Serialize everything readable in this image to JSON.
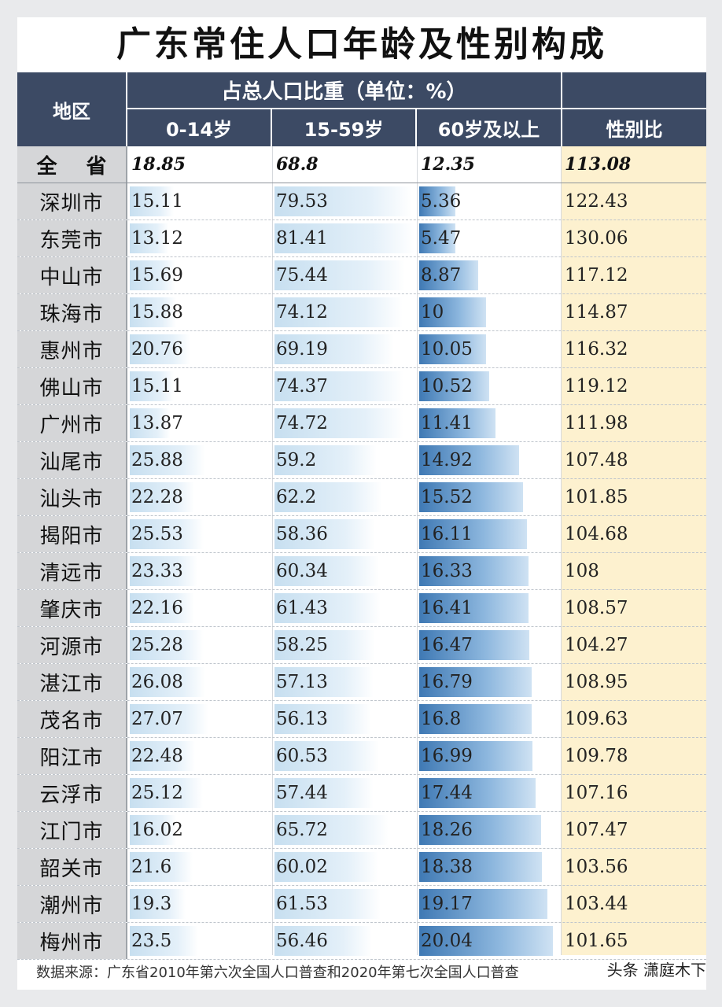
{
  "title": "广东常住人口年龄及性别构成",
  "header": {
    "region": "地区",
    "group": "占总人口比重（单位：%）",
    "col1": "0-14岁",
    "col2": "15-59岁",
    "col3": "60岁及以上",
    "col4": "性别比"
  },
  "footer": "数据来源：广东省2010年第六次全国人口普查和2020年第七次全国人口普查",
  "watermark": "头条 潇庭木下",
  "chart_data": {
    "type": "table",
    "title": "广东常住人口年龄及性别构成",
    "columns": [
      "地区",
      "0-14岁",
      "15-59岁",
      "60岁及以上",
      "性别比"
    ],
    "rows": [
      {
        "region": "全 省",
        "a": "18.85",
        "b": "68.8",
        "c": "12.35",
        "sex": "113.08"
      },
      {
        "region": "深圳市",
        "a": "15.11",
        "b": "79.53",
        "c": "5.36",
        "sex": "122.43"
      },
      {
        "region": "东莞市",
        "a": "13.12",
        "b": "81.41",
        "c": "5.47",
        "sex": "130.06"
      },
      {
        "region": "中山市",
        "a": "15.69",
        "b": "75.44",
        "c": "8.87",
        "sex": "117.12"
      },
      {
        "region": "珠海市",
        "a": "15.88",
        "b": "74.12",
        "c": "10",
        "sex": "114.87"
      },
      {
        "region": "惠州市",
        "a": "20.76",
        "b": "69.19",
        "c": "10.05",
        "sex": "116.32"
      },
      {
        "region": "佛山市",
        "a": "15.11",
        "b": "74.37",
        "c": "10.52",
        "sex": "119.12"
      },
      {
        "region": "广州市",
        "a": "13.87",
        "b": "74.72",
        "c": "11.41",
        "sex": "111.98"
      },
      {
        "region": "汕尾市",
        "a": "25.88",
        "b": "59.2",
        "c": "14.92",
        "sex": "107.48"
      },
      {
        "region": "汕头市",
        "a": "22.28",
        "b": "62.2",
        "c": "15.52",
        "sex": "101.85"
      },
      {
        "region": "揭阳市",
        "a": "25.53",
        "b": "58.36",
        "c": "16.11",
        "sex": "104.68"
      },
      {
        "region": "清远市",
        "a": "23.33",
        "b": "60.34",
        "c": "16.33",
        "sex": "108"
      },
      {
        "region": "肇庆市",
        "a": "22.16",
        "b": "61.43",
        "c": "16.41",
        "sex": "108.57"
      },
      {
        "region": "河源市",
        "a": "25.28",
        "b": "58.25",
        "c": "16.47",
        "sex": "104.27"
      },
      {
        "region": "湛江市",
        "a": "26.08",
        "b": "57.13",
        "c": "16.79",
        "sex": "108.95"
      },
      {
        "region": "茂名市",
        "a": "27.07",
        "b": "56.13",
        "c": "16.8",
        "sex": "109.63"
      },
      {
        "region": "阳江市",
        "a": "22.48",
        "b": "60.53",
        "c": "16.99",
        "sex": "109.78"
      },
      {
        "region": "云浮市",
        "a": "25.12",
        "b": "57.44",
        "c": "17.44",
        "sex": "107.16"
      },
      {
        "region": "江门市",
        "a": "16.02",
        "b": "65.72",
        "c": "18.26",
        "sex": "107.47"
      },
      {
        "region": "韶关市",
        "a": "21.6",
        "b": "60.02",
        "c": "18.38",
        "sex": "103.56"
      },
      {
        "region": "潮州市",
        "a": "19.3",
        "b": "61.53",
        "c": "19.17",
        "sex": "103.44"
      },
      {
        "region": "梅州市",
        "a": "23.5",
        "b": "56.46",
        "c": "20.04",
        "sex": "101.65"
      }
    ]
  }
}
